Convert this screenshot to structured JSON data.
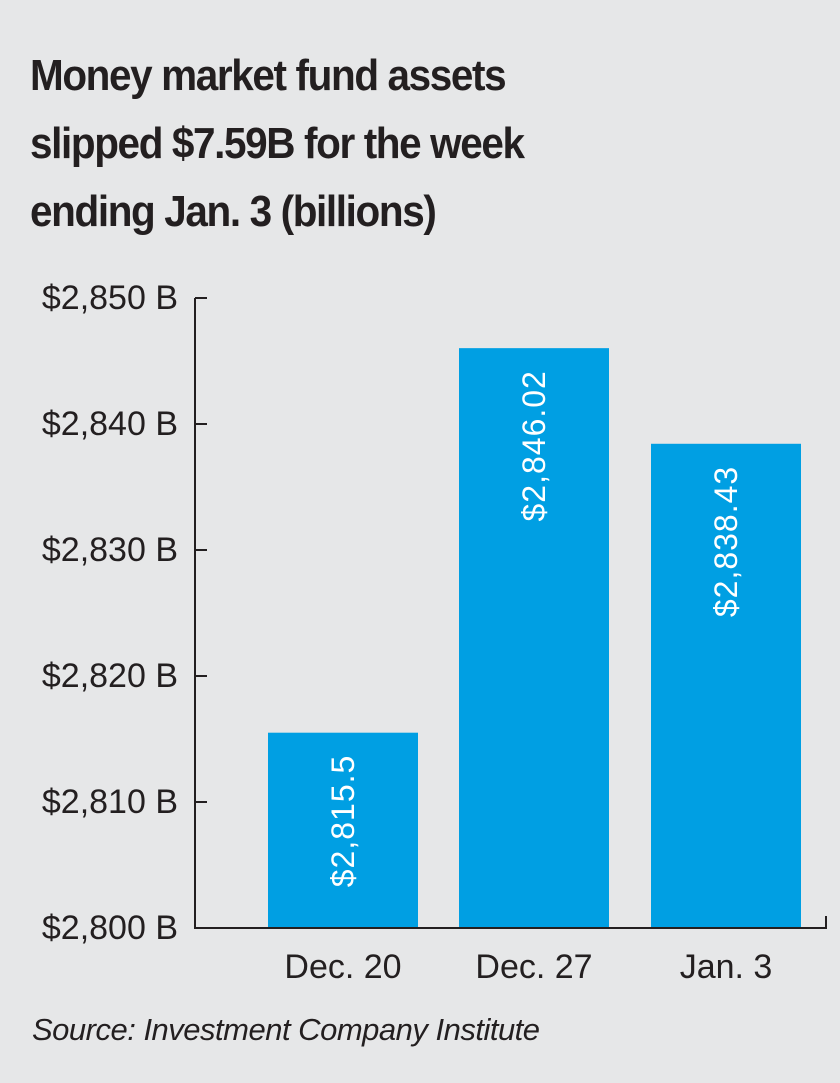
{
  "chart_data": {
    "type": "bar",
    "title_lines": [
      "Money market fund assets",
      "slipped $7.59B for the week",
      "ending Jan. 3 (billions)"
    ],
    "categories": [
      "Dec. 20",
      "Dec. 27",
      "Jan. 3"
    ],
    "values": [
      2815.5,
      2846.02,
      2838.43
    ],
    "value_labels": [
      "$2,815.5",
      "$2,846.02",
      "$2,838.43"
    ],
    "y_ticks": [
      2800,
      2810,
      2820,
      2830,
      2840,
      2850
    ],
    "y_tick_labels": [
      "$2,800 B",
      "$2,810 B",
      "$2,820 B",
      "$2,830 B",
      "$2,840 B",
      "$2,850 B"
    ],
    "ylim": [
      2800,
      2850
    ],
    "grid": false,
    "bar_color": "#009fe3",
    "axis_color": "#231f20",
    "source": "Source: Investment Company Institute"
  }
}
